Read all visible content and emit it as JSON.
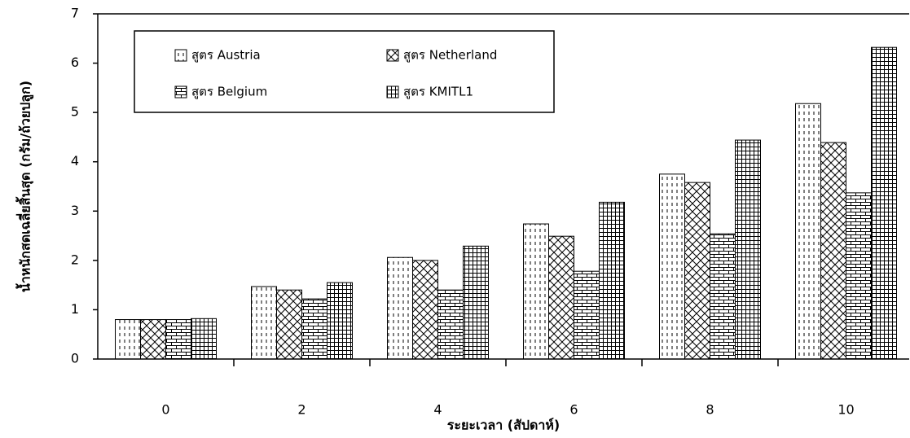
{
  "chart_data": {
    "type": "bar",
    "y_label": "น้ำหนักสดเฉลี่ยสิ้นสุด (กรัม/ถ้วยปลูก)",
    "x_label": "ระยะเวลา (สัปดาห์)",
    "categories": [
      "0",
      "2",
      "4",
      "6",
      "8",
      "10"
    ],
    "series": [
      {
        "name": "สูตร Austria",
        "color": "#000000",
        "values": [
          0.8,
          1.47,
          2.06,
          2.74,
          3.75,
          5.18
        ]
      },
      {
        "name": "สูตร Netherland",
        "color": "#000000",
        "values": [
          0.8,
          1.4,
          2.0,
          2.49,
          3.58,
          4.39
        ]
      },
      {
        "name": "สูตร Belgium",
        "color": "#000000",
        "values": [
          0.8,
          1.22,
          1.4,
          1.78,
          2.54,
          3.37
        ]
      },
      {
        "name": "สูตร KMITL1",
        "color": "#000000",
        "values": [
          0.82,
          1.55,
          2.29,
          3.18,
          4.44,
          6.32
        ]
      }
    ],
    "ylim": [
      0,
      7
    ],
    "yticks": [
      0,
      1,
      2,
      3,
      4,
      5,
      6,
      7
    ],
    "grid": false
  }
}
